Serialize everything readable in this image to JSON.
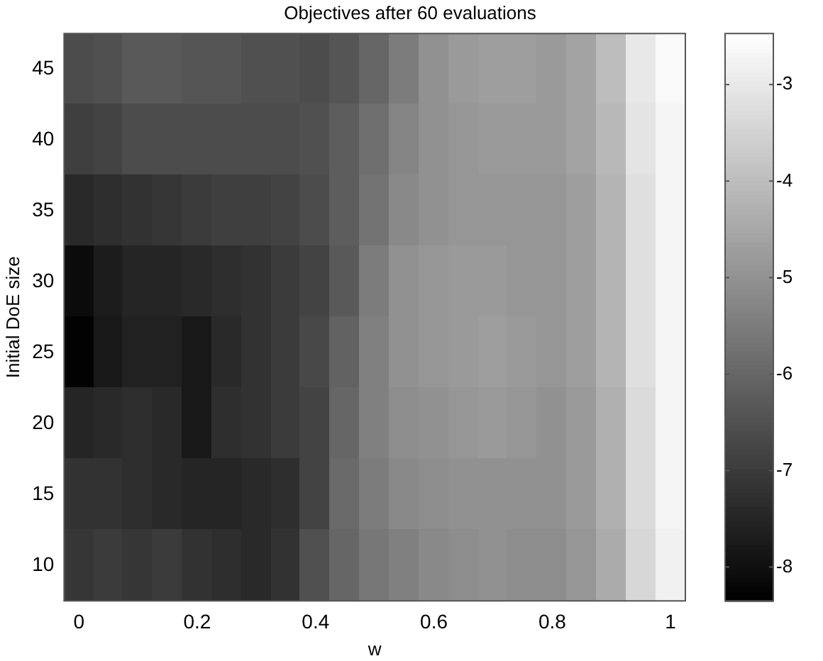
{
  "chart_data": {
    "type": "heatmap",
    "title": "Objectives after 60 evaluations",
    "xlabel": "w",
    "ylabel": "Initial DoE size",
    "categories": [
      "0",
      null,
      null,
      null,
      "0.2",
      null,
      null,
      null,
      "0.4",
      null,
      null,
      null,
      "0.6",
      null,
      null,
      null,
      "0.8",
      null,
      null,
      null,
      "1"
    ],
    "y_categories": [
      "45",
      "40",
      "35",
      "30",
      "25",
      "20",
      "15",
      "10"
    ],
    "cells": [
      [
        -6.6,
        -6.5,
        -6.3,
        -6.3,
        -6.4,
        -6.4,
        -6.5,
        -6.5,
        -6.6,
        -6.4,
        -6.0,
        -5.5,
        -5.0,
        -4.8,
        -4.7,
        -4.7,
        -4.8,
        -4.6,
        -4.0,
        -3.0,
        -2.6
      ],
      [
        -6.9,
        -6.8,
        -6.6,
        -6.6,
        -6.6,
        -6.6,
        -6.6,
        -6.6,
        -6.5,
        -6.2,
        -5.8,
        -5.3,
        -5.0,
        -4.9,
        -4.8,
        -4.8,
        -4.8,
        -4.6,
        -4.1,
        -3.1,
        -2.7
      ],
      [
        -7.4,
        -7.3,
        -7.2,
        -7.1,
        -7.0,
        -6.9,
        -6.9,
        -6.8,
        -6.6,
        -6.2,
        -5.7,
        -5.2,
        -5.0,
        -4.9,
        -4.9,
        -4.9,
        -4.9,
        -4.7,
        -4.2,
        -3.2,
        -2.7
      ],
      [
        -8.1,
        -7.7,
        -7.5,
        -7.5,
        -7.4,
        -7.3,
        -7.2,
        -7.0,
        -6.8,
        -6.3,
        -5.5,
        -5.0,
        -4.9,
        -4.8,
        -4.8,
        -4.9,
        -4.9,
        -4.7,
        -4.2,
        -3.2,
        -2.7
      ],
      [
        -8.3,
        -7.8,
        -7.6,
        -7.6,
        -7.8,
        -7.4,
        -7.2,
        -7.0,
        -6.7,
        -6.1,
        -5.4,
        -5.0,
        -4.9,
        -4.8,
        -4.7,
        -4.8,
        -4.9,
        -4.7,
        -4.2,
        -3.2,
        -2.7
      ],
      [
        -7.5,
        -7.4,
        -7.3,
        -7.4,
        -7.8,
        -7.3,
        -7.2,
        -7.0,
        -6.8,
        -6.0,
        -5.4,
        -5.1,
        -5.0,
        -4.9,
        -4.8,
        -4.9,
        -5.0,
        -4.8,
        -4.3,
        -3.3,
        -2.7
      ],
      [
        -7.2,
        -7.2,
        -7.3,
        -7.4,
        -7.5,
        -7.5,
        -7.4,
        -7.3,
        -6.8,
        -5.9,
        -5.5,
        -5.2,
        -5.1,
        -5.0,
        -5.0,
        -5.0,
        -5.0,
        -4.8,
        -4.3,
        -3.3,
        -2.7
      ],
      [
        -7.1,
        -7.0,
        -7.1,
        -7.0,
        -7.2,
        -7.3,
        -7.4,
        -7.2,
        -6.5,
        -6.0,
        -5.6,
        -5.4,
        -5.2,
        -5.1,
        -5.0,
        -5.1,
        -5.1,
        -4.9,
        -4.4,
        -3.4,
        -2.8
      ]
    ],
    "clim": [
      -8.35,
      -2.47
    ],
    "cticks": [
      -8,
      -7,
      -6,
      -5,
      -4,
      -3
    ]
  }
}
